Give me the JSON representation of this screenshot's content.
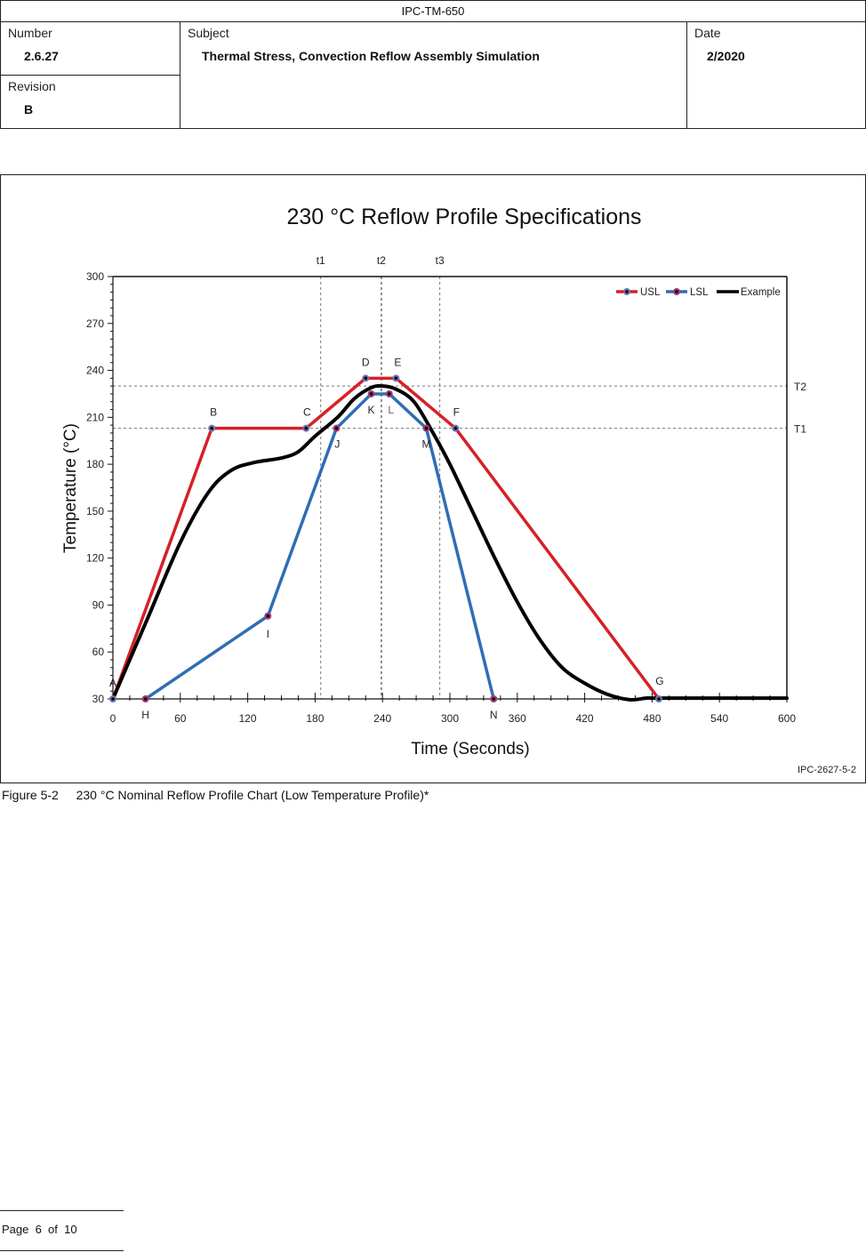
{
  "header": {
    "title": "IPC-TM-650",
    "number_label": "Number",
    "number_value": "2.6.27",
    "subject_label": "Subject",
    "subject_value": "Thermal Stress, Convection Reflow Assembly Simulation",
    "date_label": "Date",
    "date_value": "2/2020",
    "revision_label": "Revision",
    "revision_value": "B"
  },
  "figure": {
    "id_tag": "IPC-2627-5-2",
    "caption_number": "Figure 5-2",
    "caption_text": "230 °C Nominal Reflow Profile Chart (Low Temperature Profile)*"
  },
  "footer": {
    "page_text": "Page  6  of  10"
  },
  "colors": {
    "usl": "#d62027",
    "lsl": "#2f6db5",
    "example": "#000000",
    "marker_usl": "#6f74b0",
    "marker_lsl": "#a03a7a",
    "grid": "#777777"
  },
  "chart_data": {
    "type": "line",
    "title": "230 °C Reflow Profile Specifications",
    "xlabel": "Time (Seconds)",
    "ylabel": "Temperature (°C)",
    "xlim": [
      0,
      600
    ],
    "ylim": [
      30,
      300
    ],
    "xticks": [
      0,
      60,
      120,
      180,
      240,
      300,
      360,
      420,
      480,
      540,
      600
    ],
    "xtick_labels": [
      "0",
      "60",
      "120",
      "180",
      "240",
      "300",
      "360",
      "420",
      "480",
      "540",
      "600"
    ],
    "yticks": [
      30,
      60,
      90,
      120,
      150,
      180,
      210,
      240,
      270,
      300
    ],
    "ytick_labels": [
      "30",
      "60",
      "90",
      "120",
      "150",
      "180",
      "210",
      "240",
      "270",
      "300"
    ],
    "legend_position": "top-right",
    "legend": [
      "USL",
      "LSL",
      "Example"
    ],
    "reference_lines": {
      "vertical": [
        {
          "label": "t1",
          "x": 185
        },
        {
          "label": "t2",
          "x": 239
        },
        {
          "label": "t3",
          "x": 291
        }
      ],
      "horizontal": [
        {
          "label": "T2",
          "y": 230
        },
        {
          "label": "T1",
          "y": 203
        }
      ]
    },
    "series": [
      {
        "name": "USL",
        "points": [
          {
            "label": "A",
            "x": 0,
            "y": 30
          },
          {
            "label": "B",
            "x": 88,
            "y": 203
          },
          {
            "label": "C",
            "x": 172,
            "y": 203
          },
          {
            "label": "D",
            "x": 225,
            "y": 235
          },
          {
            "label": "E",
            "x": 252,
            "y": 235
          },
          {
            "label": "F",
            "x": 305,
            "y": 203
          },
          {
            "label": "G",
            "x": 486,
            "y": 30
          }
        ]
      },
      {
        "name": "LSL",
        "points": [
          {
            "label": "H",
            "x": 29,
            "y": 30
          },
          {
            "label": "I",
            "x": 138,
            "y": 83
          },
          {
            "label": "J",
            "x": 199,
            "y": 203
          },
          {
            "label": "K",
            "x": 230,
            "y": 225
          },
          {
            "label": "L",
            "x": 246,
            "y": 225
          },
          {
            "label": "M",
            "x": 279,
            "y": 203
          },
          {
            "label": "N",
            "x": 339,
            "y": 30
          }
        ]
      },
      {
        "name": "Example",
        "points": [
          {
            "x": 0,
            "y": 30
          },
          {
            "x": 30,
            "y": 80
          },
          {
            "x": 60,
            "y": 130
          },
          {
            "x": 85,
            "y": 162
          },
          {
            "x": 105,
            "y": 176
          },
          {
            "x": 125,
            "y": 181
          },
          {
            "x": 150,
            "y": 184
          },
          {
            "x": 165,
            "y": 188
          },
          {
            "x": 180,
            "y": 198
          },
          {
            "x": 200,
            "y": 210
          },
          {
            "x": 215,
            "y": 222
          },
          {
            "x": 230,
            "y": 229
          },
          {
            "x": 240,
            "y": 230
          },
          {
            "x": 252,
            "y": 228
          },
          {
            "x": 268,
            "y": 220
          },
          {
            "x": 285,
            "y": 200
          },
          {
            "x": 300,
            "y": 180
          },
          {
            "x": 320,
            "y": 150
          },
          {
            "x": 340,
            "y": 120
          },
          {
            "x": 360,
            "y": 92
          },
          {
            "x": 380,
            "y": 68
          },
          {
            "x": 400,
            "y": 50
          },
          {
            "x": 420,
            "y": 40
          },
          {
            "x": 440,
            "y": 33
          },
          {
            "x": 460,
            "y": 29.5
          },
          {
            "x": 475,
            "y": 30.5
          },
          {
            "x": 490,
            "y": 30.5
          },
          {
            "x": 600,
            "y": 30.5
          }
        ]
      }
    ]
  }
}
